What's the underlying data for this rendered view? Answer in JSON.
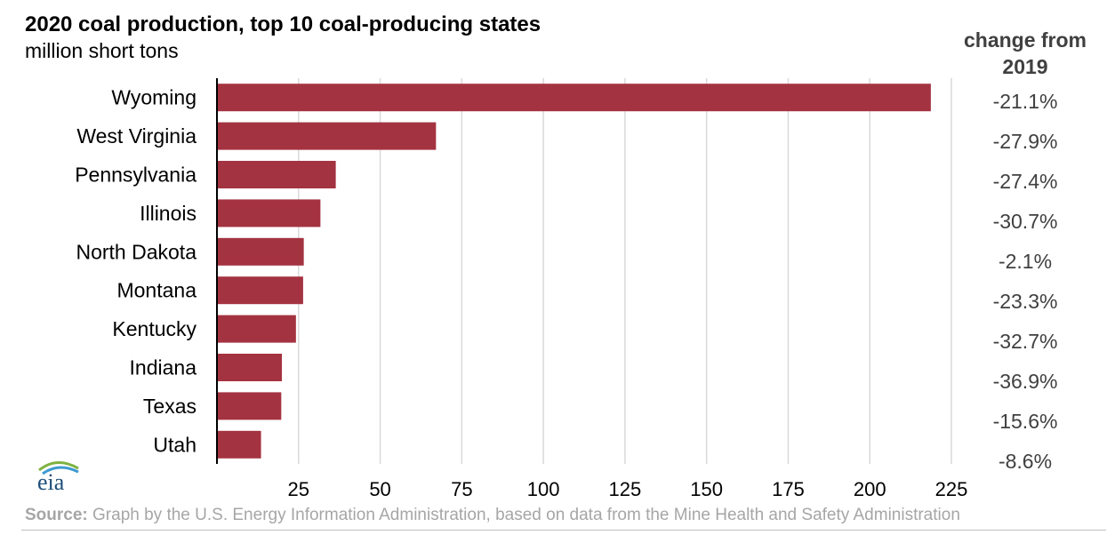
{
  "chart_data": {
    "type": "bar",
    "orientation": "horizontal",
    "title": "2020 coal production, top 10 coal-producing states",
    "subtitle": "million short tons",
    "categories": [
      "Wyoming",
      "West Virginia",
      "Pennsylvania",
      "Illinois",
      "North Dakota",
      "Montana",
      "Kentucky",
      "Indiana",
      "Texas",
      "Utah"
    ],
    "values": [
      218.7,
      67.1,
      36.4,
      31.7,
      26.6,
      26.4,
      24.2,
      19.9,
      19.7,
      13.5
    ],
    "change_header": "change from 2019",
    "change_from_2019": [
      "-21.1%",
      "-27.9%",
      "-27.4%",
      "-30.7%",
      "-2.1%",
      "-23.3%",
      "-32.7%",
      "-36.9%",
      "-15.6%",
      "-8.6%"
    ],
    "xlim": [
      0,
      225
    ],
    "xticks": [
      25,
      50,
      75,
      100,
      125,
      150,
      175,
      200,
      225
    ],
    "grid": true,
    "bar_color": "#a43341"
  },
  "source": {
    "label": "Source:",
    "text": " Graph by the U.S. Energy Information Administration, based on data from the Mine Health and Safety Administration"
  },
  "logo": {
    "text": "eia",
    "icon": "eia-logo-icon"
  }
}
